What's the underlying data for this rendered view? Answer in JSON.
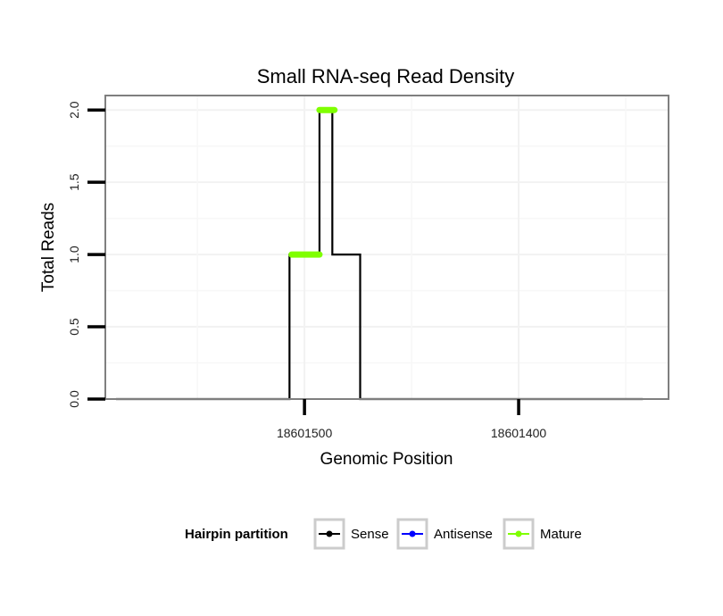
{
  "chart_data": {
    "type": "line",
    "title": "Small RNA-seq Read Density",
    "xlabel": "Genomic Position",
    "ylabel": "Total Reads",
    "x_axis_reversed": true,
    "xlim": [
      18601593,
      18601330
    ],
    "ylim": [
      0,
      2.1
    ],
    "x_ticks": [
      18601500,
      18601400
    ],
    "x_tick_labels": [
      "18601500",
      "18601400"
    ],
    "y_ticks": [
      0,
      0.5,
      1,
      1.5,
      2
    ],
    "y_tick_labels": [
      "0.0",
      "0.5",
      "1.0",
      "1.5",
      "2.0"
    ],
    "grid": true,
    "legend": {
      "title": "Hairpin partition",
      "placement": "bottom",
      "entries": [
        "Sense",
        "Antisense",
        "Mature"
      ]
    },
    "series": [
      {
        "name": "Sense",
        "color": "#000000",
        "x": [
          18601588,
          18601507,
          18601507,
          18601493,
          18601493,
          18601487,
          18601487,
          18601474,
          18601474,
          18601472,
          18601342
        ],
        "y": [
          0,
          0,
          1,
          1,
          2,
          2,
          1,
          1,
          0,
          0,
          0
        ]
      },
      {
        "name": "Antisense",
        "color": "#0000ff",
        "x": [
          18601506,
          18601473
        ],
        "y": [
          0,
          0
        ]
      },
      {
        "name": "Mature",
        "color": "#7fff00",
        "segments": [
          {
            "x": [
              18601506,
              18601493
            ],
            "y": [
              1,
              1
            ]
          },
          {
            "x": [
              18601493,
              18601486
            ],
            "y": [
              2,
              2
            ]
          }
        ]
      }
    ]
  }
}
